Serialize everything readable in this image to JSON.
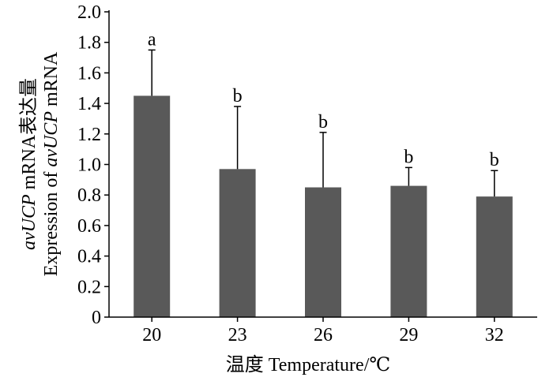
{
  "chart_data": {
    "type": "bar",
    "categories": [
      "20",
      "23",
      "26",
      "29",
      "32"
    ],
    "values": [
      1.45,
      0.97,
      0.85,
      0.86,
      0.79
    ],
    "error_upper": [
      1.75,
      1.38,
      1.21,
      0.98,
      0.96
    ],
    "significance_labels": [
      "a",
      "b",
      "b",
      "b",
      "b"
    ],
    "ylim": [
      0,
      2.0
    ],
    "yticks": [
      "0",
      "0.2",
      "0.4",
      "0.6",
      "0.8",
      "1.0",
      "1.2",
      "1.4",
      "1.6",
      "1.8",
      "2.0"
    ],
    "xlabel": "温度  Temperature/℃",
    "ylabel_line1": "avUCP mRNA表达量",
    "ylabel_line2": "Expression of avUCP mRNA",
    "grid": false,
    "bar_color": "#595959",
    "axis_color": "#000000"
  }
}
